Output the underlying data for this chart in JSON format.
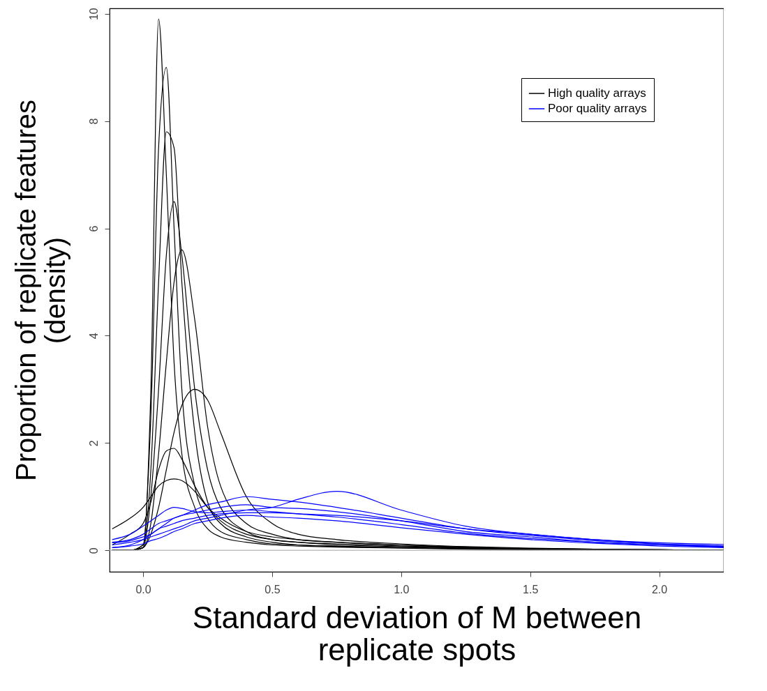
{
  "chart_data": {
    "type": "line",
    "xlabel": "Standard deviation of M between replicate spots",
    "ylabel": "Proportion of replicate features (density)",
    "x": [
      -0.12,
      -0.05,
      0,
      0.03,
      0.06,
      0.09,
      0.12,
      0.15,
      0.2,
      0.25,
      0.3,
      0.4,
      0.5,
      0.6,
      0.75,
      1.0,
      1.25,
      1.5,
      1.75,
      2.0,
      2.25
    ],
    "series": [
      {
        "name": "High quality arrays",
        "color": "#000000",
        "values": [
          0,
          0,
          0.05,
          3,
          9.9,
          7,
          3.5,
          1.8,
          0.8,
          0.4,
          0.25,
          0.15,
          0.1,
          0.08,
          0.06,
          0.04,
          0.02,
          0.01,
          0.01,
          0,
          0
        ]
      },
      {
        "color": "#000000",
        "values": [
          0,
          0,
          0.1,
          1.5,
          5,
          7.8,
          7.5,
          5,
          2.2,
          0.9,
          0.5,
          0.25,
          0.15,
          0.1,
          0.08,
          0.05,
          0.03,
          0.02,
          0.01,
          0,
          0
        ]
      },
      {
        "color": "#000000",
        "values": [
          0,
          0,
          0.05,
          0.5,
          1.8,
          3.5,
          5,
          5.6,
          4.3,
          2.3,
          1.2,
          0.5,
          0.3,
          0.2,
          0.15,
          0.1,
          0.05,
          0.03,
          0.02,
          0.01,
          0
        ]
      },
      {
        "color": "#000000",
        "values": [
          0,
          0,
          0.05,
          0.3,
          0.8,
          1.5,
          2.2,
          2.7,
          3,
          2.8,
          2.2,
          1,
          0.5,
          0.3,
          0.2,
          0.12,
          0.07,
          0.04,
          0.02,
          0.01,
          0
        ]
      },
      {
        "color": "#000000",
        "values": [
          0.4,
          0.6,
          0.8,
          1,
          1.2,
          1.3,
          1.33,
          1.3,
          1.1,
          0.8,
          0.6,
          0.35,
          0.25,
          0.2,
          0.15,
          0.1,
          0.06,
          0.03,
          0.02,
          0.01,
          0
        ]
      },
      {
        "color": "#000000",
        "values": [
          0.1,
          0.3,
          0.5,
          0.9,
          1.5,
          1.85,
          1.9,
          1.7,
          1.2,
          0.8,
          0.55,
          0.3,
          0.2,
          0.15,
          0.12,
          0.08,
          0.05,
          0.03,
          0.02,
          0.01,
          0
        ]
      },
      {
        "color": "#000000",
        "values": [
          0,
          0,
          0.1,
          2.5,
          7.5,
          9,
          6,
          3,
          1.2,
          0.6,
          0.35,
          0.2,
          0.12,
          0.1,
          0.07,
          0.05,
          0.03,
          0.02,
          0.01,
          0,
          0
        ]
      },
      {
        "color": "#000000",
        "values": [
          0,
          0,
          0.05,
          1,
          3,
          5.5,
          6.5,
          5.5,
          3,
          1.5,
          0.8,
          0.35,
          0.2,
          0.15,
          0.1,
          0.07,
          0.04,
          0.02,
          0.01,
          0,
          0
        ]
      },
      {
        "name": "Poor quality arrays",
        "color": "#0000ff",
        "values": [
          0.1,
          0.15,
          0.2,
          0.25,
          0.3,
          0.35,
          0.4,
          0.45,
          0.55,
          0.6,
          0.65,
          0.75,
          0.8,
          0.95,
          1.1,
          0.75,
          0.45,
          0.3,
          0.2,
          0.12,
          0.08
        ]
      },
      {
        "color": "#0000ff",
        "values": [
          0.05,
          0.1,
          0.2,
          0.3,
          0.4,
          0.5,
          0.6,
          0.65,
          0.75,
          0.85,
          0.9,
          1,
          0.95,
          0.9,
          0.8,
          0.6,
          0.4,
          0.28,
          0.18,
          0.12,
          0.08
        ]
      },
      {
        "color": "#0000ff",
        "values": [
          0.2,
          0.3,
          0.45,
          0.55,
          0.65,
          0.75,
          0.8,
          0.78,
          0.72,
          0.7,
          0.72,
          0.75,
          0.72,
          0.68,
          0.62,
          0.48,
          0.32,
          0.22,
          0.15,
          0.1,
          0.07
        ]
      },
      {
        "color": "#0000ff",
        "values": [
          0.14,
          0.18,
          0.25,
          0.3,
          0.4,
          0.45,
          0.5,
          0.55,
          0.6,
          0.65,
          0.68,
          0.7,
          0.7,
          0.68,
          0.65,
          0.55,
          0.4,
          0.3,
          0.2,
          0.14,
          0.11
        ]
      },
      {
        "color": "#0000ff",
        "values": [
          0.05,
          0.08,
          0.12,
          0.18,
          0.22,
          0.28,
          0.35,
          0.4,
          0.5,
          0.55,
          0.6,
          0.65,
          0.62,
          0.6,
          0.55,
          0.42,
          0.3,
          0.2,
          0.13,
          0.08,
          0.05
        ]
      },
      {
        "color": "#0000ff",
        "values": [
          0.15,
          0.2,
          0.3,
          0.4,
          0.5,
          0.55,
          0.6,
          0.65,
          0.7,
          0.75,
          0.8,
          0.85,
          0.8,
          0.78,
          0.72,
          0.55,
          0.35,
          0.25,
          0.15,
          0.1,
          0.06
        ]
      }
    ],
    "xlim": [
      -0.13,
      2.25
    ],
    "ylim": [
      -0.4,
      10.1
    ],
    "xticks": [
      {
        "value": 0,
        "label": "0.0"
      },
      {
        "value": 0.5,
        "label": "0.5"
      },
      {
        "value": 1,
        "label": "1.0"
      },
      {
        "value": 1.5,
        "label": "1.5"
      },
      {
        "value": 2,
        "label": "2.0"
      }
    ],
    "yticks": [
      0,
      2,
      4,
      6,
      8,
      10
    ],
    "ref_lines": [
      {
        "axis": "y",
        "value": 0,
        "color": "#c0c0c0"
      }
    ],
    "grid": false,
    "legend": "top right",
    "marker": "none",
    "line_style": "solid"
  }
}
